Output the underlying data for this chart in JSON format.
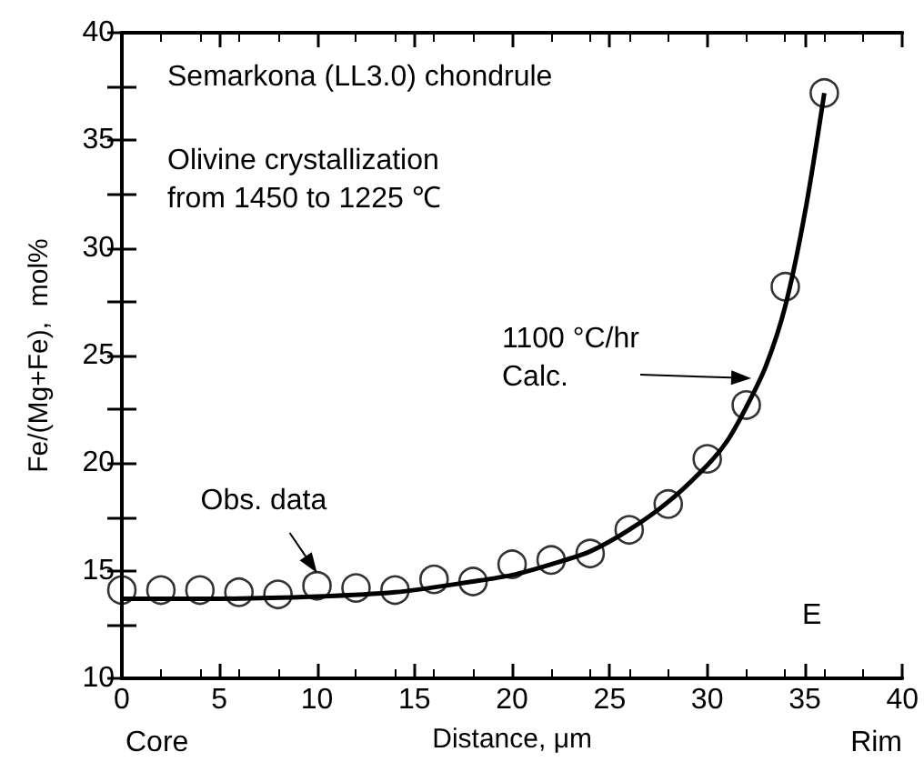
{
  "chart_data": {
    "type": "scatter",
    "xlabel": "Distance, μm",
    "ylabel": "Fe/(Mg+Fe),  mol%",
    "xlim": [
      0,
      40
    ],
    "ylim": [
      10,
      40
    ],
    "xticks": [
      0,
      5,
      10,
      15,
      20,
      25,
      30,
      35,
      40
    ],
    "yticks": [
      10,
      15,
      20,
      25,
      30,
      35,
      40
    ],
    "series": [
      {
        "color": "#000000",
        "marker": "circle",
        "x": [
          0,
          2,
          4,
          6,
          8,
          10,
          12,
          14,
          16,
          18,
          20,
          22,
          24,
          26,
          28,
          30,
          32,
          34,
          36
        ],
        "values": [
          14.1,
          14.1,
          14.1,
          14.0,
          13.9,
          14.3,
          14.2,
          14.1,
          14.6,
          14.5,
          15.3,
          15.5,
          15.8,
          16.9,
          18.1,
          20.2,
          22.7,
          28.2,
          37.2
        ]
      },
      {
        "type": "line",
        "color": "#000000",
        "marker": "none",
        "x": [
          0,
          5,
          10,
          14,
          18,
          20,
          22,
          24,
          26,
          28,
          30,
          31,
          32,
          33,
          34,
          35,
          36
        ],
        "values": [
          13.7,
          13.7,
          13.8,
          14.0,
          14.5,
          14.8,
          15.3,
          15.9,
          16.9,
          18.2,
          19.9,
          21.0,
          22.6,
          24.5,
          27.3,
          31.6,
          37.2
        ]
      }
    ],
    "annotations": [
      "Semarkona (LL3.0) chondrule",
      "Olivine crystallization\nfrom 1450 to 1225 ℃",
      "1100 °C/hr\nCalc.",
      {
        "text": "Obs. data",
        "x": 10,
        "y": 14.9
      },
      "E",
      "Core",
      "Rim"
    ]
  }
}
